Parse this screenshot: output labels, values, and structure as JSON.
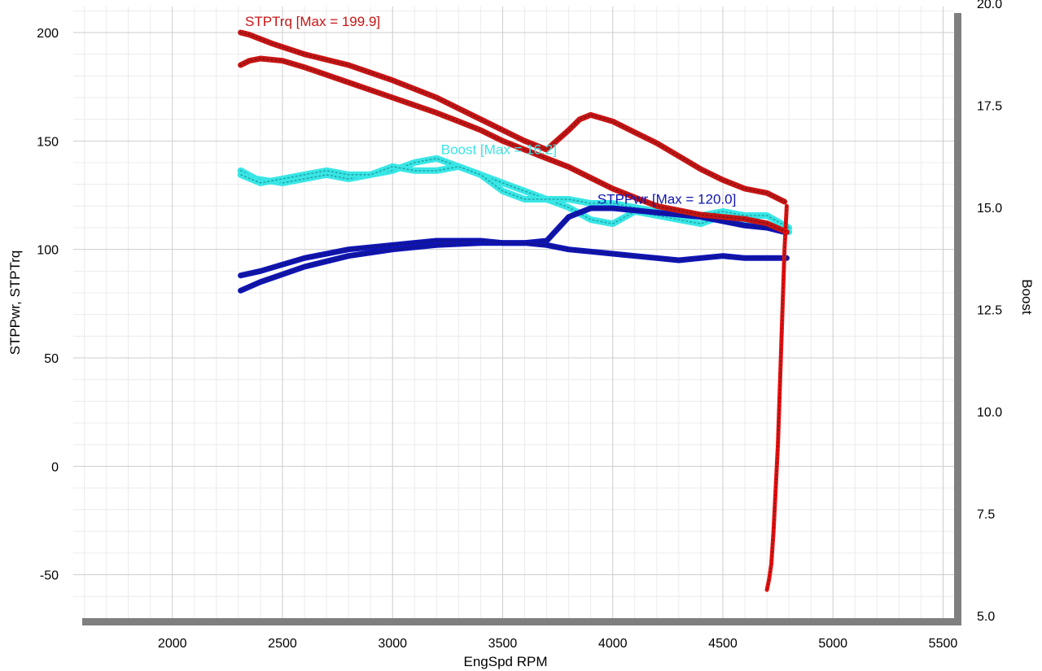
{
  "chart_data": {
    "type": "line",
    "xlabel": "EngSpd  RPM",
    "ylabel": "STPPwr, STPTrq",
    "y2label": "Boost",
    "xlim": [
      1550,
      5550
    ],
    "ylim": [
      -70,
      212
    ],
    "y2lim": [
      5.0,
      20.0
    ],
    "grid": true,
    "x_ticks": [
      2000,
      2500,
      3000,
      3500,
      4000,
      4500,
      5000,
      5500
    ],
    "x_tick_labels": [
      "2000",
      "2500",
      "3000",
      "3500",
      "4000",
      "4500",
      "5000",
      "5500"
    ],
    "y_ticks": [
      -50,
      0,
      50,
      100,
      150,
      200
    ],
    "y_tick_labels": [
      "-50",
      "0",
      "50",
      "100",
      "150",
      "200"
    ],
    "y2_ticks": [
      5.0,
      7.5,
      10.0,
      12.5,
      15.0,
      17.5,
      20.0
    ],
    "y2_tick_labels": [
      "5.0",
      "7.5",
      "10.0",
      "12.5",
      "15.0",
      "17.5",
      "20.0"
    ],
    "annotations": [
      {
        "series": "STPTrq",
        "text": "STPTrq [Max = 199.9]",
        "x": 2330,
        "y": 203,
        "axis": "left"
      },
      {
        "series": "Boost",
        "text": "Boost  [Max = 16.2]",
        "x": 3220,
        "y": 16.3,
        "axis": "right"
      },
      {
        "series": "STPPwr",
        "text": "STPPwr [Max = 120.0]",
        "x": 3930,
        "y": 121,
        "axis": "left"
      }
    ],
    "series": [
      {
        "name": "STPTrq",
        "axis": "left",
        "color": "#c81414",
        "x": [
          2310,
          2350,
          2450,
          2600,
          2800,
          3000,
          3200,
          3400,
          3500,
          3600,
          3700,
          3800,
          3850,
          3900,
          4000,
          4100,
          4200,
          4300,
          4400,
          4500,
          4600,
          4700,
          4780
        ],
        "y": [
          200,
          199,
          195,
          190,
          185,
          178,
          170,
          160,
          155,
          150,
          146,
          155,
          160,
          162,
          159,
          154,
          149,
          143,
          137,
          132,
          128,
          126,
          122
        ]
      },
      {
        "name": "STPTrq-return",
        "axis": "left",
        "color": "#c81414",
        "x": [
          4790,
          4700,
          4600,
          4500,
          4400,
          4300,
          4200,
          4100,
          4000,
          3900,
          3800,
          3700,
          3600,
          3500,
          3400,
          3300,
          3200,
          3000,
          2800,
          2600,
          2500,
          2400,
          2350,
          2310
        ],
        "y": [
          108,
          112,
          114,
          115,
          116,
          118,
          120,
          124,
          128,
          133,
          138,
          142,
          146,
          150,
          155,
          159,
          163,
          170,
          177,
          184,
          187,
          188,
          187,
          185
        ]
      },
      {
        "name": "STPTrq-drop",
        "axis": "left",
        "color": "#e81010",
        "x": [
          4790,
          4780,
          4770,
          4760,
          4750,
          4740,
          4730,
          4720,
          4710,
          4700
        ],
        "y": [
          120,
          100,
          70,
          40,
          10,
          -10,
          -30,
          -45,
          -52,
          -57
        ]
      },
      {
        "name": "STPPwr",
        "axis": "left",
        "color": "#0f14b4",
        "x": [
          2310,
          2400,
          2600,
          2800,
          3000,
          3200,
          3400,
          3600,
          3700,
          3800,
          3900,
          4000,
          4100,
          4200,
          4300,
          4400,
          4500,
          4600,
          4700,
          4780
        ],
        "y": [
          81,
          85,
          92,
          97,
          100,
          102,
          103,
          103,
          104,
          115,
          119,
          119,
          118,
          117,
          116,
          115,
          113,
          111,
          110,
          108
        ]
      },
      {
        "name": "STPPwr-return",
        "axis": "left",
        "color": "#0f14b4",
        "x": [
          4790,
          4700,
          4600,
          4500,
          4400,
          4300,
          4200,
          4100,
          4000,
          3900,
          3800,
          3700,
          3600,
          3500,
          3400,
          3200,
          3000,
          2800,
          2600,
          2400,
          2310
        ],
        "y": [
          96,
          96,
          96,
          97,
          96,
          95,
          96,
          97,
          98,
          99,
          100,
          102,
          103,
          103,
          104,
          104,
          102,
          100,
          96,
          90,
          88
        ]
      },
      {
        "name": "Boost",
        "axis": "right",
        "color": "#39e6e6",
        "x": [
          2310,
          2380,
          2500,
          2600,
          2700,
          2800,
          2900,
          3000,
          3100,
          3200,
          3300,
          3400,
          3500,
          3600,
          3700,
          3800,
          3900,
          4000,
          4100,
          4200,
          4300,
          4400,
          4500,
          4600,
          4700,
          4800
        ],
        "y": [
          15.9,
          15.7,
          15.6,
          15.7,
          15.8,
          15.7,
          15.8,
          15.9,
          16.1,
          16.2,
          16.0,
          15.8,
          15.6,
          15.4,
          15.2,
          15.0,
          14.7,
          14.6,
          14.9,
          14.8,
          14.7,
          14.6,
          14.8,
          14.7,
          14.6,
          14.4
        ]
      },
      {
        "name": "Boost-return",
        "axis": "right",
        "color": "#39e6e6",
        "x": [
          4800,
          4700,
          4600,
          4500,
          4400,
          4300,
          4200,
          4100,
          4000,
          3900,
          3800,
          3700,
          3600,
          3500,
          3400,
          3300,
          3200,
          3100,
          3000,
          2900,
          2800,
          2700,
          2600,
          2500,
          2400,
          2310
        ],
        "y": [
          14.5,
          14.8,
          14.8,
          14.9,
          14.8,
          14.8,
          14.9,
          15.0,
          15.1,
          15.1,
          15.2,
          15.2,
          15.2,
          15.4,
          15.8,
          16.0,
          15.9,
          15.9,
          16.0,
          15.8,
          15.8,
          15.9,
          15.8,
          15.7,
          15.6,
          15.8
        ]
      }
    ]
  }
}
